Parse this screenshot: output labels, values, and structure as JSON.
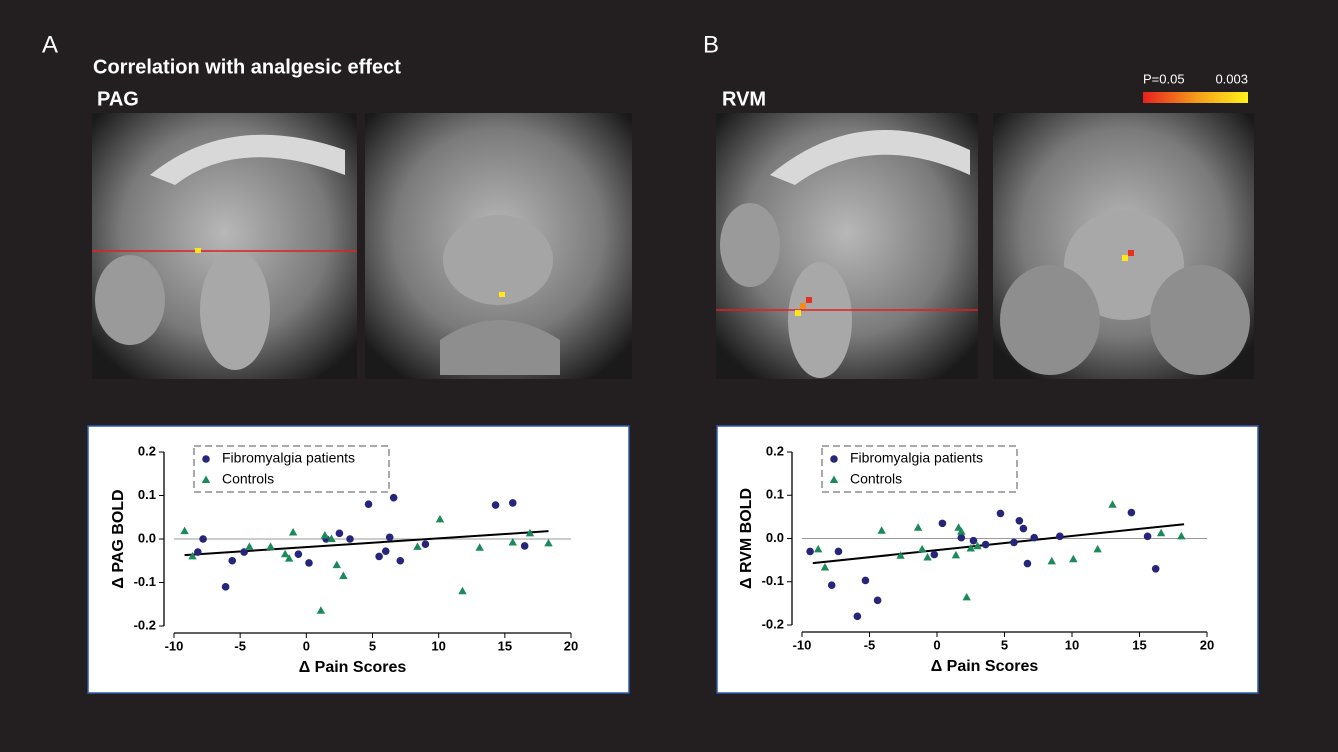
{
  "panels": [
    {
      "label": "A",
      "heading": "Correlation with analgesic effect",
      "region": "PAG"
    },
    {
      "label": "B",
      "region": "RVM"
    }
  ],
  "colorbar": {
    "min_label": "P=0.05",
    "max_label": "0.003"
  },
  "chart_data": [
    {
      "type": "scatter",
      "x_label": "Δ  Pain Scores",
      "y_label": "Δ  PAG BOLD",
      "xlim": [
        -10,
        20
      ],
      "xticks": [
        -10,
        -5,
        0,
        5,
        10,
        15,
        20
      ],
      "ylim": [
        -0.2,
        0.2
      ],
      "yticks": [
        -0.2,
        -0.1,
        {
          "value": 0,
          "label": "0.0"
        },
        0.1,
        0.2
      ],
      "series": [
        {
          "name": "Fibromyalgia patients",
          "color": "#25257a",
          "marker": "circle",
          "x": [
            -7.8,
            -8.2,
            -6.1,
            -5.6,
            -4.7,
            -0.6,
            0.2,
            1.5,
            2.5,
            3.3,
            4.7,
            5.5,
            6.0,
            6.3,
            6.6,
            7.1,
            9.0,
            14.3,
            15.6,
            16.5
          ],
          "values": [
            0.0,
            -0.03,
            -0.11,
            -0.05,
            -0.03,
            -0.035,
            -0.055,
            0.0,
            0.013,
            0.0,
            0.08,
            -0.04,
            -0.028,
            0.004,
            0.095,
            -0.05,
            -0.012,
            0.078,
            0.083,
            -0.016
          ]
        },
        {
          "name": "Controls",
          "color": "#1b8a5a",
          "marker": "triangle",
          "x": [
            -9.2,
            -8.6,
            -4.3,
            -2.7,
            -1.6,
            -1.3,
            -1.0,
            1.1,
            1.4,
            1.9,
            2.3,
            2.8,
            8.4,
            10.1,
            11.8,
            13.1,
            15.6,
            16.9,
            18.3
          ],
          "values": [
            0.018,
            -0.04,
            -0.018,
            -0.018,
            -0.035,
            -0.045,
            0.015,
            -0.165,
            0.008,
            0.0,
            -0.06,
            -0.085,
            -0.018,
            0.045,
            -0.12,
            -0.02,
            -0.008,
            0.013,
            -0.01
          ]
        }
      ],
      "fit": {
        "x": [
          -9.2,
          18.3
        ],
        "y": [
          -0.037,
          0.018
        ]
      }
    },
    {
      "type": "scatter",
      "x_label": "Δ  Pain Scores",
      "y_label": "Δ  RVM BOLD",
      "xlim": [
        -10,
        20
      ],
      "xticks": [
        -10,
        -5,
        0,
        5,
        10,
        15,
        20
      ],
      "ylim": [
        -0.2,
        0.2
      ],
      "yticks": [
        -0.2,
        -0.1,
        {
          "value": 0,
          "label": "0.0"
        },
        0.1,
        0.2
      ],
      "series": [
        {
          "name": "Fibromyalgia patients",
          "color": "#25257a",
          "marker": "circle",
          "x": [
            -9.4,
            -7.8,
            -7.3,
            -5.9,
            -5.3,
            -4.4,
            -0.2,
            0.4,
            1.8,
            2.7,
            3.6,
            4.7,
            5.7,
            6.1,
            6.4,
            6.7,
            7.2,
            9.1,
            14.4,
            15.6,
            16.2
          ],
          "values": [
            -0.03,
            -0.108,
            -0.03,
            -0.18,
            -0.097,
            -0.143,
            -0.037,
            0.035,
            0.002,
            -0.005,
            -0.014,
            0.058,
            -0.009,
            0.041,
            0.023,
            -0.058,
            0.002,
            0.005,
            0.06,
            0.005,
            -0.07
          ]
        },
        {
          "name": "Controls",
          "color": "#1b8a5a",
          "marker": "triangle",
          "x": [
            -8.8,
            -8.3,
            -4.1,
            -2.7,
            -1.4,
            -1.1,
            -0.7,
            1.4,
            1.6,
            1.8,
            2.2,
            2.5,
            3.0,
            8.5,
            10.1,
            11.9,
            13.0,
            16.6,
            18.1
          ],
          "values": [
            -0.025,
            -0.067,
            0.018,
            -0.04,
            0.025,
            -0.025,
            -0.044,
            -0.039,
            0.025,
            0.016,
            -0.136,
            -0.023,
            -0.018,
            -0.053,
            -0.048,
            -0.025,
            0.078,
            0.012,
            0.005
          ]
        }
      ],
      "fit": {
        "x": [
          -9.2,
          18.3
        ],
        "y": [
          -0.057,
          0.033
        ]
      }
    }
  ]
}
